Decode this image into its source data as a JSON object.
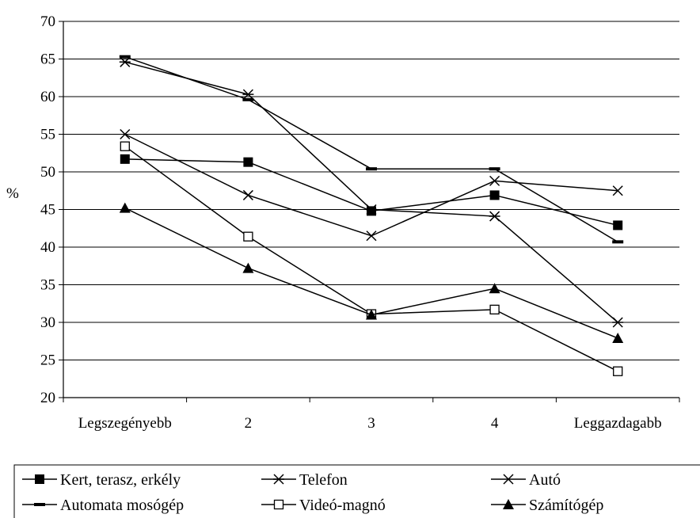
{
  "chart_data": {
    "type": "line",
    "title": "",
    "xlabel": "",
    "ylabel": "%",
    "ylim": [
      20,
      70
    ],
    "y_ticks": [
      20,
      25,
      30,
      35,
      40,
      45,
      50,
      55,
      60,
      65,
      70
    ],
    "categories": [
      "Legszegényebb",
      "2",
      "3",
      "4",
      "Leggazdagabb"
    ],
    "grid": "horizontal",
    "legend_position": "bottom",
    "series": [
      {
        "name": "Kert, terasz, erkély",
        "marker": "filled-square",
        "values": [
          51.7,
          51.3,
          44.8,
          46.9,
          42.9
        ]
      },
      {
        "name": "Telefon",
        "marker": "asterisk",
        "values": [
          64.6,
          60.3,
          45.0,
          44.1,
          30.0
        ]
      },
      {
        "name": "Autó",
        "marker": "x",
        "values": [
          55.0,
          46.9,
          41.5,
          48.8,
          47.5
        ]
      },
      {
        "name": "Automata mosógép",
        "marker": "dash",
        "values": [
          65.3,
          59.6,
          50.4,
          50.4,
          40.7
        ]
      },
      {
        "name": "Videó-magnó",
        "marker": "open-square",
        "values": [
          53.4,
          41.4,
          31.1,
          31.7,
          23.5
        ]
      },
      {
        "name": "Számítógép",
        "marker": "filled-triangle",
        "values": [
          45.2,
          37.2,
          31.0,
          34.5,
          27.9
        ]
      }
    ]
  }
}
